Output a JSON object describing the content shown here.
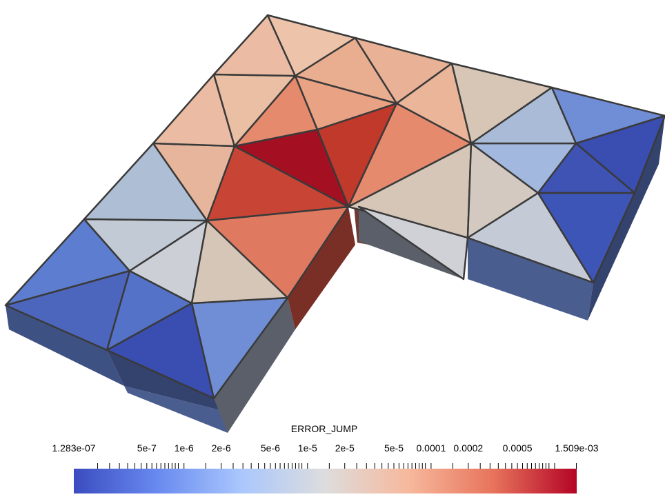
{
  "colorbar": {
    "title": "ERROR_JUMP",
    "min_label": "1.283e-07",
    "max_label": "1.509e-03",
    "min_value": 1.283e-07,
    "max_value": 0.001509,
    "scale": "log",
    "colormap_colors": [
      "#3b4cc0",
      "#688aef",
      "#aac7fd",
      "#dddddd",
      "#f7b89c",
      "#e7745b",
      "#b40426"
    ],
    "labeled_ticks": [
      {
        "label": "5e-7",
        "value": 5e-07
      },
      {
        "label": "1e-6",
        "value": 1e-06
      },
      {
        "label": "2e-6",
        "value": 2e-06
      },
      {
        "label": "5e-6",
        "value": 5e-06
      },
      {
        "label": "1e-5",
        "value": 1e-05
      },
      {
        "label": "2e-5",
        "value": 2e-05
      },
      {
        "label": "5e-5",
        "value": 5e-05
      },
      {
        "label": "0.0001",
        "value": 0.0001
      },
      {
        "label": "0.0002",
        "value": 0.0002
      },
      {
        "label": "0.0005",
        "value": 0.0005
      }
    ]
  },
  "mesh": {
    "top_fill_colors": {
      "deep_red": "#a50f22",
      "red": "#c0392b",
      "orange": "#e0826a",
      "light_orange": "#e9ad8f",
      "peach": "#ebbfa3",
      "beige": "#d6c6b8",
      "light_gray": "#c4cbd6",
      "light_blue": "#a9bbd6",
      "periwinkle": "#94aede",
      "blue": "#6f8ed6",
      "mid_blue": "#5473c8",
      "dark_blue": "#3a4db0"
    },
    "side_fill_colors": {
      "blue_side": "#4a5d8f",
      "dark_side": "#34426e",
      "gray_side": "#5a5f6a",
      "red_side": "#7a2f26"
    }
  }
}
